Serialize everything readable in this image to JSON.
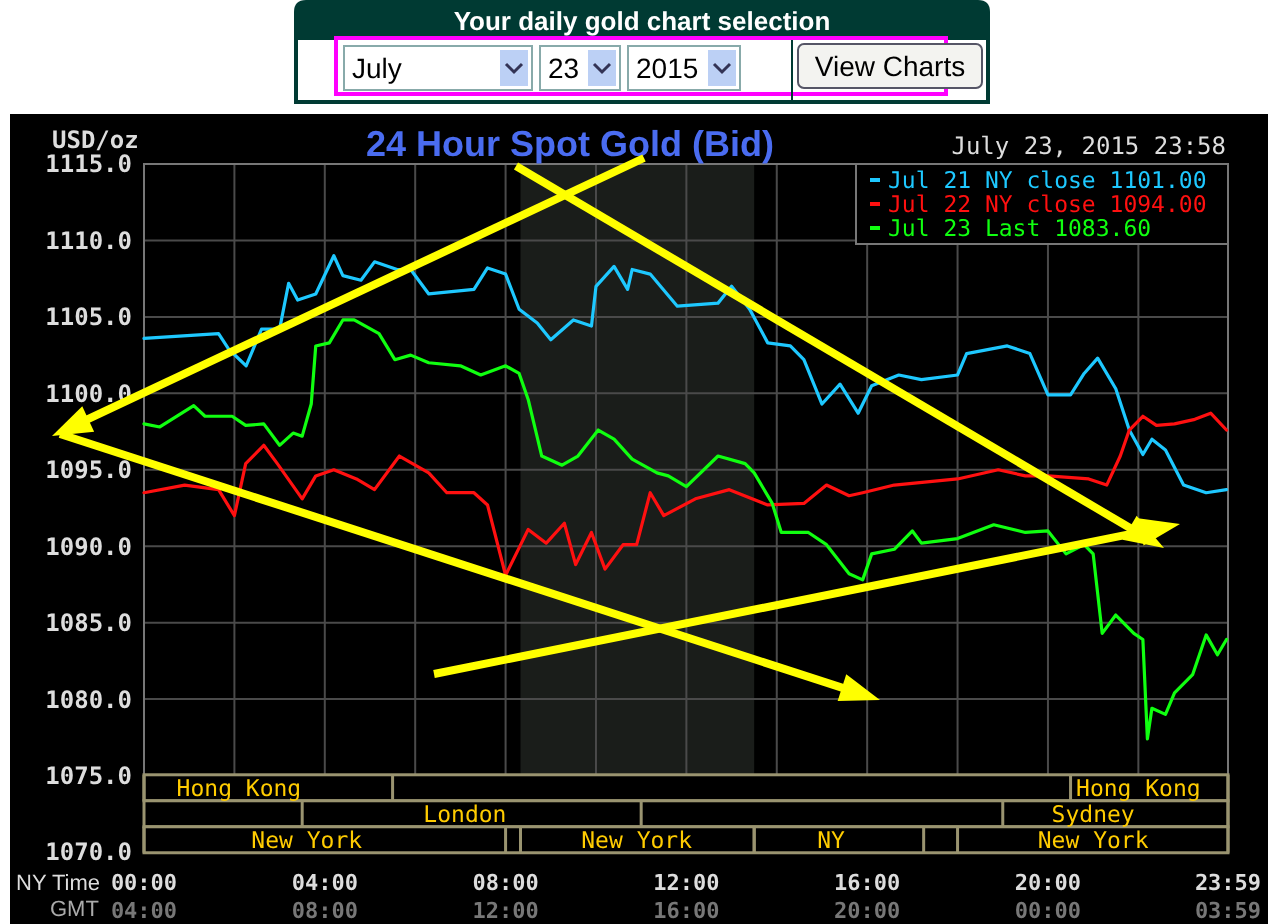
{
  "chart_data": {
    "type": "line",
    "title": "24 Hour Spot Gold (Bid)",
    "subtitle": "July 23, 2015 23:58",
    "ylabel": "USD/oz",
    "xlabel": "NY Time",
    "x2label": "GMT",
    "annotations": [
      "Your daily gold chart selection",
      "July",
      "23",
      "2015",
      "View Charts",
      "Hong Kong",
      "London",
      "New York",
      "New York",
      "NY",
      "Hong Kong",
      "Sydney",
      "New York"
    ],
    "bands": [
      {
        "axis": "x",
        "from": 8.33,
        "to": 13.5,
        "color": "#1a1d1a"
      }
    ],
    "xlim": [
      0,
      23.9833
    ],
    "ylim": [
      1070,
      1115
    ],
    "xticks": [
      {
        "value": 0,
        "label": "00:00"
      },
      {
        "value": 2,
        "label": null
      },
      {
        "value": 4,
        "label": "04:00"
      },
      {
        "value": 6,
        "label": null
      },
      {
        "value": 8,
        "label": "08:00"
      },
      {
        "value": 10,
        "label": null
      },
      {
        "value": 12,
        "label": "12:00"
      },
      {
        "value": 14,
        "label": null
      },
      {
        "value": 16,
        "label": "16:00"
      },
      {
        "value": 18,
        "label": null
      },
      {
        "value": 20,
        "label": "20:00"
      },
      {
        "value": 22,
        "label": null
      },
      {
        "value": 23.9833,
        "label": "23:59"
      }
    ],
    "x2lim": [
      "2015-07-23T04:00",
      "2015-07-24T03:59"
    ],
    "x2ticks": [
      {
        "value": "2015-07-23T04:00",
        "label": "04:00"
      },
      {
        "value": "2015-07-23T08:00",
        "label": "08:00"
      },
      {
        "value": "2015-07-23T12:00",
        "label": "12:00"
      },
      {
        "value": "2015-07-23T16:00",
        "label": "16:00"
      },
      {
        "value": "2015-07-23T20:00",
        "label": "20:00"
      },
      {
        "value": "2015-07-24T00:00",
        "label": "00:00"
      },
      {
        "value": "2015-07-24T03:59",
        "label": "03:59"
      }
    ],
    "yticks": [
      {
        "value": 1070,
        "label": "1070.0"
      },
      {
        "value": 1075,
        "label": "1075.0"
      },
      {
        "value": 1080,
        "label": "1080.0"
      },
      {
        "value": 1085,
        "label": "1085.0"
      },
      {
        "value": 1090,
        "label": "1090.0"
      },
      {
        "value": 1095,
        "label": "1095.0"
      },
      {
        "value": 1100,
        "label": "1100.0"
      },
      {
        "value": 1105,
        "label": "1105.0"
      },
      {
        "value": 1110,
        "label": "1110.0"
      },
      {
        "value": 1115,
        "label": "1115.0"
      }
    ],
    "grid": true,
    "legend": "top right",
    "marker": "none",
    "line_style": "solid",
    "series": [
      {
        "name": "Jul 21 NY close 1101.00",
        "color": "#1ec8ff",
        "x": [
          0,
          1.65,
          1.87,
          2.26,
          2.6,
          3.0,
          3.2,
          3.4,
          3.8,
          4.2,
          4.4,
          4.8,
          5.1,
          5.6,
          5.9,
          6.3,
          7.3,
          7.6,
          8.0,
          8.3,
          8.7,
          9.0,
          9.5,
          9.9,
          10.0,
          10.4,
          10.7,
          10.8,
          11.2,
          11.8,
          12.7,
          13.0,
          13.4,
          13.8,
          14.3,
          14.6,
          15.0,
          15.4,
          15.8,
          16.1,
          16.7,
          17.2,
          18.0,
          18.2,
          19.1,
          19.6,
          20.0,
          20.5,
          20.8,
          21.1,
          21.5,
          21.8,
          22.1,
          22.3,
          22.6,
          23.0,
          23.5,
          23.95
        ],
        "values": [
          1103.6,
          1103.9,
          1102.9,
          1101.8,
          1104.2,
          1104.2,
          1107.2,
          1106.1,
          1106.5,
          1109.0,
          1107.7,
          1107.4,
          1108.6,
          1108.1,
          1108.1,
          1106.5,
          1106.8,
          1108.2,
          1107.8,
          1105.5,
          1104.6,
          1103.5,
          1104.8,
          1104.4,
          1107.0,
          1108.3,
          1106.8,
          1108.1,
          1107.8,
          1105.7,
          1105.9,
          1107.0,
          1105.5,
          1103.3,
          1103.1,
          1102.2,
          1099.3,
          1100.6,
          1098.7,
          1100.5,
          1101.2,
          1100.9,
          1101.2,
          1102.6,
          1103.1,
          1102.6,
          1099.9,
          1099.9,
          1101.3,
          1102.3,
          1100.3,
          1097.6,
          1096.0,
          1097.0,
          1096.3,
          1094.0,
          1093.5,
          1093.7
        ]
      },
      {
        "name": "Jul 22 NY close 1094.00",
        "color": "#ff1010",
        "x": [
          0,
          0.9,
          1.65,
          2.0,
          2.25,
          2.65,
          2.95,
          3.5,
          3.8,
          4.2,
          4.7,
          5.1,
          5.65,
          6.3,
          6.7,
          7.3,
          7.6,
          8.0,
          8.5,
          8.9,
          9.3,
          9.55,
          9.9,
          10.2,
          10.6,
          10.9,
          11.2,
          11.5,
          12.2,
          12.95,
          13.8,
          14.6,
          15.1,
          15.6,
          15.9,
          16.6,
          18.0,
          18.9,
          19.5,
          20.0,
          20.9,
          21.3,
          21.6,
          21.8,
          22.1,
          22.4,
          22.8,
          23.25,
          23.6,
          23.95
        ],
        "values": [
          1093.5,
          1094.0,
          1093.7,
          1092.0,
          1095.4,
          1096.6,
          1095.4,
          1093.1,
          1094.6,
          1095.0,
          1094.4,
          1093.7,
          1095.9,
          1094.8,
          1093.5,
          1093.5,
          1092.7,
          1088.1,
          1091.1,
          1090.2,
          1091.5,
          1088.8,
          1090.9,
          1088.5,
          1090.1,
          1090.1,
          1093.5,
          1092.0,
          1093.1,
          1093.7,
          1092.7,
          1092.8,
          1094.0,
          1093.3,
          1093.5,
          1094.0,
          1094.4,
          1095.0,
          1094.6,
          1094.6,
          1094.4,
          1094.0,
          1095.9,
          1097.6,
          1098.5,
          1097.9,
          1098.0,
          1098.3,
          1098.7,
          1097.6
        ]
      },
      {
        "name": "Jul 23 Last 1083.60",
        "color": "#10ff10",
        "x": [
          0,
          0.35,
          1.1,
          1.35,
          1.95,
          2.25,
          2.65,
          3.0,
          3.3,
          3.5,
          3.7,
          3.8,
          4.1,
          4.4,
          4.65,
          5.2,
          5.55,
          5.9,
          6.3,
          7.0,
          7.45,
          8.0,
          8.3,
          8.5,
          8.8,
          9.25,
          9.6,
          10.05,
          10.4,
          10.8,
          11.35,
          11.6,
          12.0,
          12.7,
          13.3,
          13.5,
          13.9,
          14.1,
          14.7,
          15.1,
          15.6,
          15.9,
          16.1,
          16.6,
          17.0,
          17.2,
          18.0,
          18.8,
          19.5,
          20.0,
          20.4,
          20.8,
          21.0,
          21.2,
          21.5,
          21.9,
          22.1,
          22.2,
          22.3,
          22.6,
          22.8,
          23.2,
          23.5,
          23.75,
          23.95
        ],
        "values": [
          1098.0,
          1097.8,
          1099.2,
          1098.5,
          1098.5,
          1097.9,
          1098.0,
          1096.6,
          1097.4,
          1097.2,
          1099.3,
          1103.1,
          1103.3,
          1104.8,
          1104.8,
          1103.9,
          1102.2,
          1102.5,
          1102.0,
          1101.8,
          1101.2,
          1101.8,
          1101.3,
          1099.6,
          1095.9,
          1095.3,
          1095.9,
          1097.6,
          1097.0,
          1095.7,
          1094.8,
          1094.6,
          1093.9,
          1095.9,
          1095.4,
          1094.8,
          1092.8,
          1090.9,
          1090.9,
          1090.1,
          1088.2,
          1087.8,
          1089.5,
          1089.8,
          1091.0,
          1090.2,
          1090.5,
          1091.4,
          1090.9,
          1091.0,
          1089.5,
          1090.1,
          1089.5,
          1084.3,
          1085.5,
          1084.3,
          1083.9,
          1077.4,
          1079.4,
          1079.0,
          1080.4,
          1081.6,
          1084.2,
          1082.9,
          1083.9
        ]
      }
    ]
  }
}
